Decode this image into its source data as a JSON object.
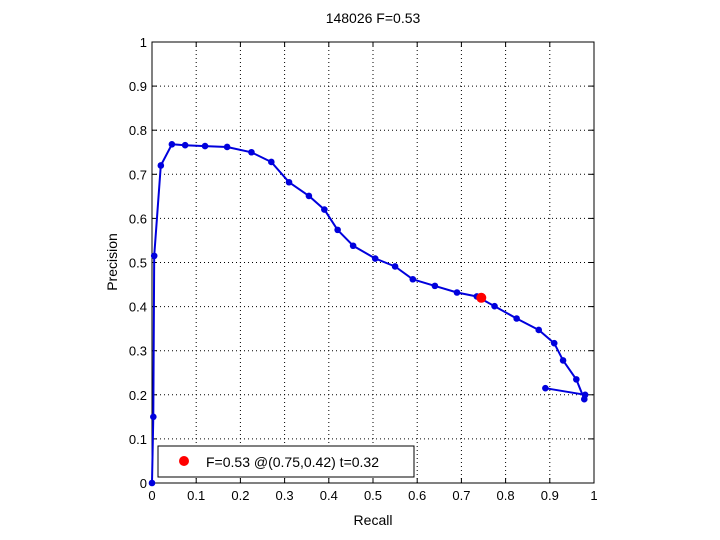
{
  "chart_data": {
    "type": "line",
    "title": "148026 F=0.53",
    "xlabel": "Recall",
    "ylabel": "Precision",
    "xlim": [
      0,
      1
    ],
    "ylim": [
      0,
      1
    ],
    "xticks": [
      "0",
      "0.1",
      "0.2",
      "0.3",
      "0.4",
      "0.5",
      "0.6",
      "0.7",
      "0.8",
      "0.9",
      "1"
    ],
    "yticks": [
      "0",
      "0.1",
      "0.2",
      "0.3",
      "0.4",
      "0.5",
      "0.6",
      "0.7",
      "0.8",
      "0.9",
      "1"
    ],
    "grid": true,
    "legend_position": "bottom-left",
    "series": [
      {
        "color": "#0000dd",
        "x": [
          0,
          0.003,
          0.005,
          0.02,
          0.045,
          0.075,
          0.12,
          0.17,
          0.225,
          0.27,
          0.31,
          0.355,
          0.39,
          0.42,
          0.455,
          0.505,
          0.55,
          0.59,
          0.64,
          0.69,
          0.735,
          0.775,
          0.825,
          0.875,
          0.91,
          0.93,
          0.96,
          0.978,
          0.98,
          0.89
        ],
        "y": [
          0,
          0.15,
          0.515,
          0.72,
          0.768,
          0.766,
          0.764,
          0.762,
          0.75,
          0.728,
          0.682,
          0.651,
          0.62,
          0.574,
          0.538,
          0.509,
          0.491,
          0.462,
          0.447,
          0.432,
          0.423,
          0.401,
          0.373,
          0.347,
          0.317,
          0.278,
          0.235,
          0.19,
          0.2,
          0.215
        ]
      }
    ],
    "best_point": {
      "x": 0.745,
      "y": 0.42,
      "color": "#ff0000"
    },
    "legend_text": "F=0.53 @(0.75,0.42) t=0.32"
  }
}
